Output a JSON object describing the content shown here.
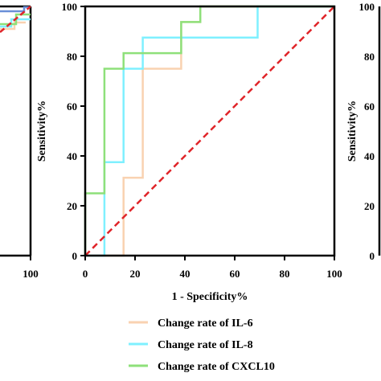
{
  "chart_data": {
    "type": "line",
    "title": "",
    "xlabel": "1 - Specificity%",
    "ylabel": "Sensitivity%",
    "xlim": [
      0,
      100
    ],
    "ylim": [
      0,
      100
    ],
    "x_ticks": [
      "0",
      "20",
      "40",
      "60",
      "80",
      "100"
    ],
    "y_ticks": [
      "0",
      "20",
      "40",
      "60",
      "80",
      "100"
    ],
    "grid": false,
    "legend_position": "bottom",
    "colors": {
      "il6": "#f9d2b1",
      "il8": "#7ff0ff",
      "cxcl10": "#8ee07a",
      "reference": "#e0252a",
      "axis": "#000000"
    },
    "series": [
      {
        "name": "Change rate of IL-6",
        "color": "#f9d2b1",
        "x": [
          0,
          15.4,
          15.4,
          23.1,
          23.1,
          38.5,
          38.5,
          46.2,
          46.2,
          100
        ],
        "y": [
          0,
          0,
          31.25,
          31.25,
          75,
          75,
          93.75,
          93.75,
          100,
          100
        ]
      },
      {
        "name": "Change rate of IL-8",
        "color": "#7ff0ff",
        "x": [
          0,
          7.7,
          7.7,
          15.4,
          15.4,
          23.1,
          23.1,
          69.2,
          69.2,
          100
        ],
        "y": [
          0,
          0,
          37.5,
          37.5,
          75,
          75,
          87.5,
          87.5,
          100,
          100
        ]
      },
      {
        "name": "Change rate of CXCL10",
        "color": "#8ee07a",
        "x": [
          0,
          0,
          7.7,
          7.7,
          15.4,
          15.4,
          38.5,
          38.5,
          46.2,
          46.2,
          100
        ],
        "y": [
          0,
          25,
          25,
          75,
          75,
          81.25,
          81.25,
          93.75,
          93.75,
          100,
          100
        ]
      }
    ],
    "reference_line": {
      "x": [
        0,
        100
      ],
      "y": [
        0,
        100
      ]
    },
    "left_partial": {
      "x_tick": "100",
      "series_colors": [
        "#f9d2b1",
        "#7ff0ff",
        "#8ee07a",
        "#6a8fd8"
      ]
    },
    "right_partial": {
      "ylabel": "Sensitivity%",
      "y_ticks": [
        "0",
        "20",
        "40",
        "60",
        "80",
        "100"
      ]
    }
  }
}
